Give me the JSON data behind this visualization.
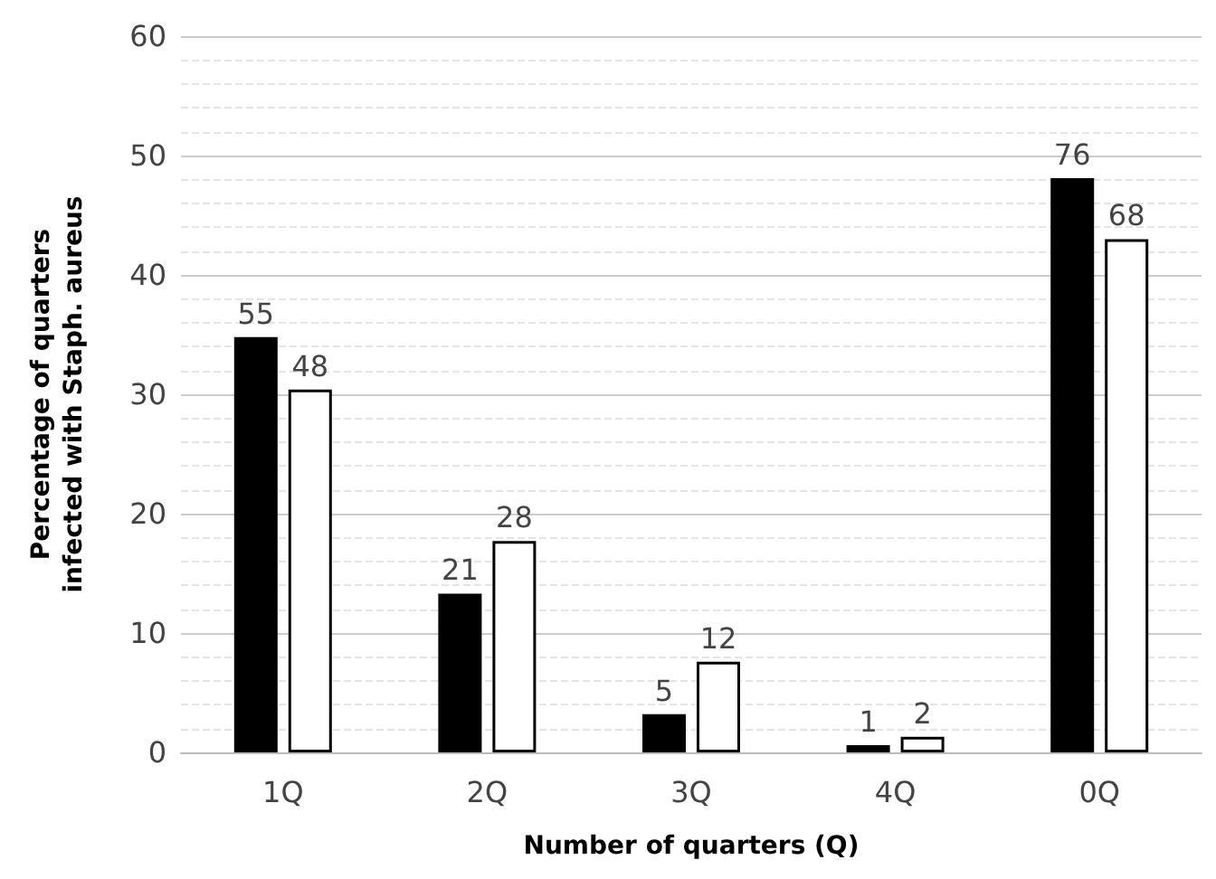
{
  "chart_data": {
    "type": "bar",
    "xlabel": "Number of quarters (Q)",
    "ylabel": "Percentage of quarters infected with Staph. aureus",
    "categories": [
      "1Q",
      "2Q",
      "3Q",
      "4Q",
      "0Q"
    ],
    "series": [
      {
        "color": "#000000",
        "values": [
          34.8,
          13.3,
          3.2,
          0.6,
          48.1
        ]
      },
      {
        "color": "#ffffff",
        "values": [
          30.4,
          17.7,
          7.6,
          1.3,
          43.0
        ]
      }
    ],
    "annotations": [
      {
        "text": "55",
        "x": "1Q",
        "y": 34.8
      },
      {
        "text": "48",
        "x": "1Q",
        "y": 30.4
      },
      {
        "text": "21",
        "x": "2Q",
        "y": 13.3
      },
      {
        "text": "28",
        "x": "2Q",
        "y": 17.7
      },
      {
        "text": "5",
        "x": "3Q",
        "y": 3.2
      },
      {
        "text": "12",
        "x": "3Q",
        "y": 7.6
      },
      {
        "text": "1",
        "x": "4Q",
        "y": 0.6
      },
      {
        "text": "2",
        "x": "4Q",
        "y": 1.3
      },
      {
        "text": "76",
        "x": "0Q",
        "y": 48.1
      },
      {
        "text": "68",
        "x": "0Q",
        "y": 43.0
      }
    ],
    "ylim": [
      0,
      60
    ],
    "yticks": [
      0,
      10,
      20,
      30,
      40,
      50,
      60
    ],
    "grid": "y"
  }
}
